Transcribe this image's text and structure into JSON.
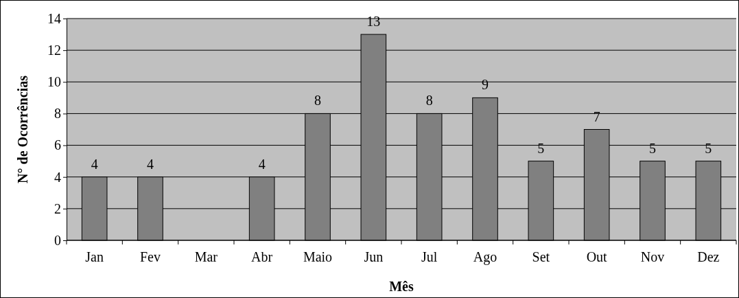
{
  "chart_data": {
    "type": "bar",
    "xlabel": "Mês",
    "ylabel": "N° de Ocorrências",
    "categories": [
      "Jan",
      "Fev",
      "Mar",
      "Abr",
      "Maio",
      "Jun",
      "Jul",
      "Ago",
      "Set",
      "Out",
      "Nov",
      "Dez"
    ],
    "values": [
      4,
      4,
      0,
      4,
      8,
      13,
      8,
      9,
      5,
      7,
      5,
      5
    ],
    "value_labels": [
      "4",
      "4",
      null,
      "4",
      "8",
      "13",
      "8",
      "9",
      "5",
      "7",
      "5",
      "5"
    ],
    "color": "#808080",
    "ylim": [
      0,
      14
    ],
    "yticks": [
      0,
      2,
      4,
      6,
      8,
      10,
      12,
      14
    ],
    "grid": "y"
  }
}
